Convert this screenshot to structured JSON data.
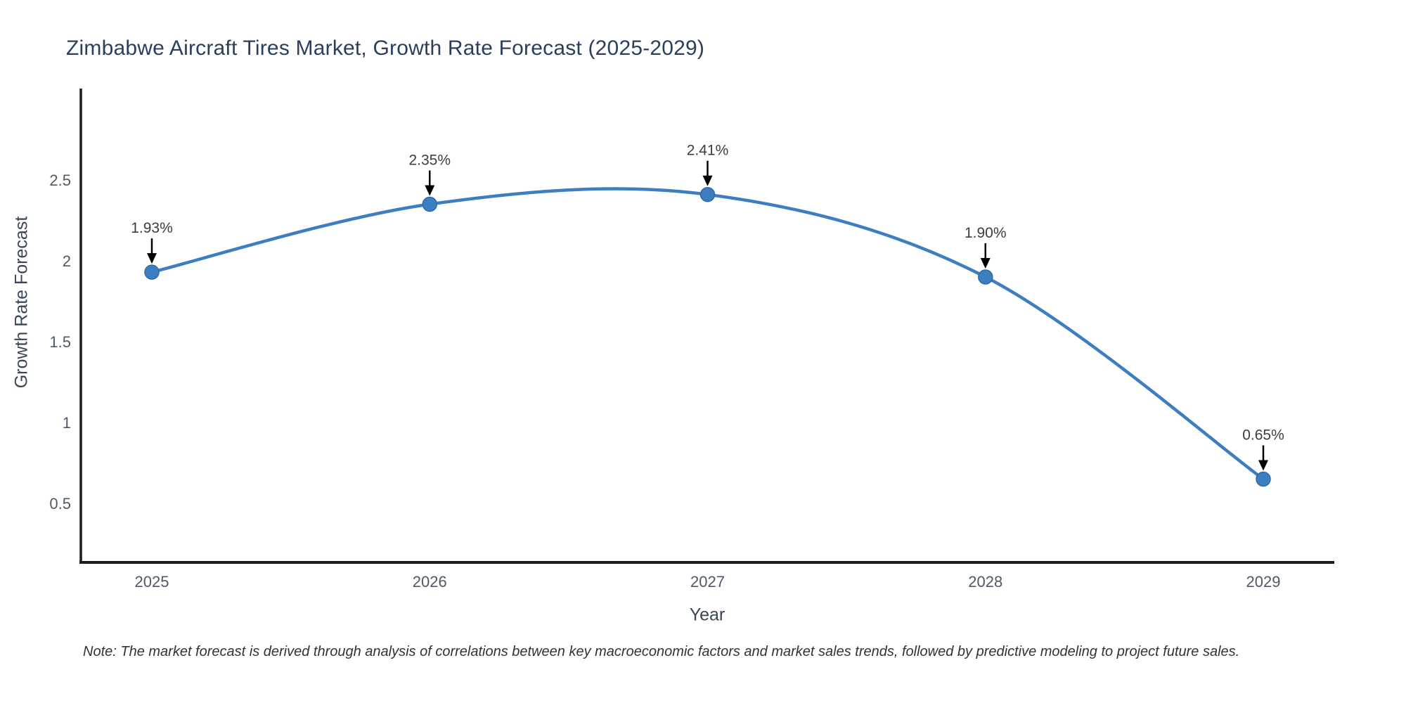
{
  "title": "Zimbabwe Aircraft Tires Market, Growth Rate Forecast (2025-2029)",
  "note": "Note: The market forecast is derived through analysis of correlations between key macroeconomic factors and market sales trends, followed by predictive modeling to project future sales.",
  "chart_data": {
    "type": "line",
    "title": "Zimbabwe Aircraft Tires Market, Growth Rate Forecast (2025-2029)",
    "xlabel": "Year",
    "ylabel": "Growth Rate Forecast",
    "categories": [
      "2025",
      "2026",
      "2027",
      "2028",
      "2029"
    ],
    "series": [
      {
        "name": "Growth Rate Forecast",
        "values": [
          1.93,
          2.35,
          2.41,
          1.9,
          0.65
        ],
        "point_labels": [
          "1.93%",
          "2.35%",
          "2.41%",
          "1.90%",
          "0.65%"
        ]
      }
    ],
    "line_shape": "spline",
    "markers": true,
    "annotation_arrows": true,
    "yticks": [
      0.5,
      1,
      1.5,
      2,
      2.5
    ],
    "ylim": [
      0.13,
      3.05
    ],
    "grid": false,
    "legend": "none",
    "colors": {
      "line": "#3c7ebf",
      "marker": "#3c7ebf",
      "marker_edge": "#2e6da4",
      "axis_line": "#1c1c1c",
      "arrow": "#000000",
      "title_text": "#2a3f5f",
      "axis_title_text": "#3a4656",
      "tick_text": "#4e5a68",
      "annotation_text": "#3d3d3d",
      "note_text": "#333333",
      "background": "#ffffff"
    }
  }
}
